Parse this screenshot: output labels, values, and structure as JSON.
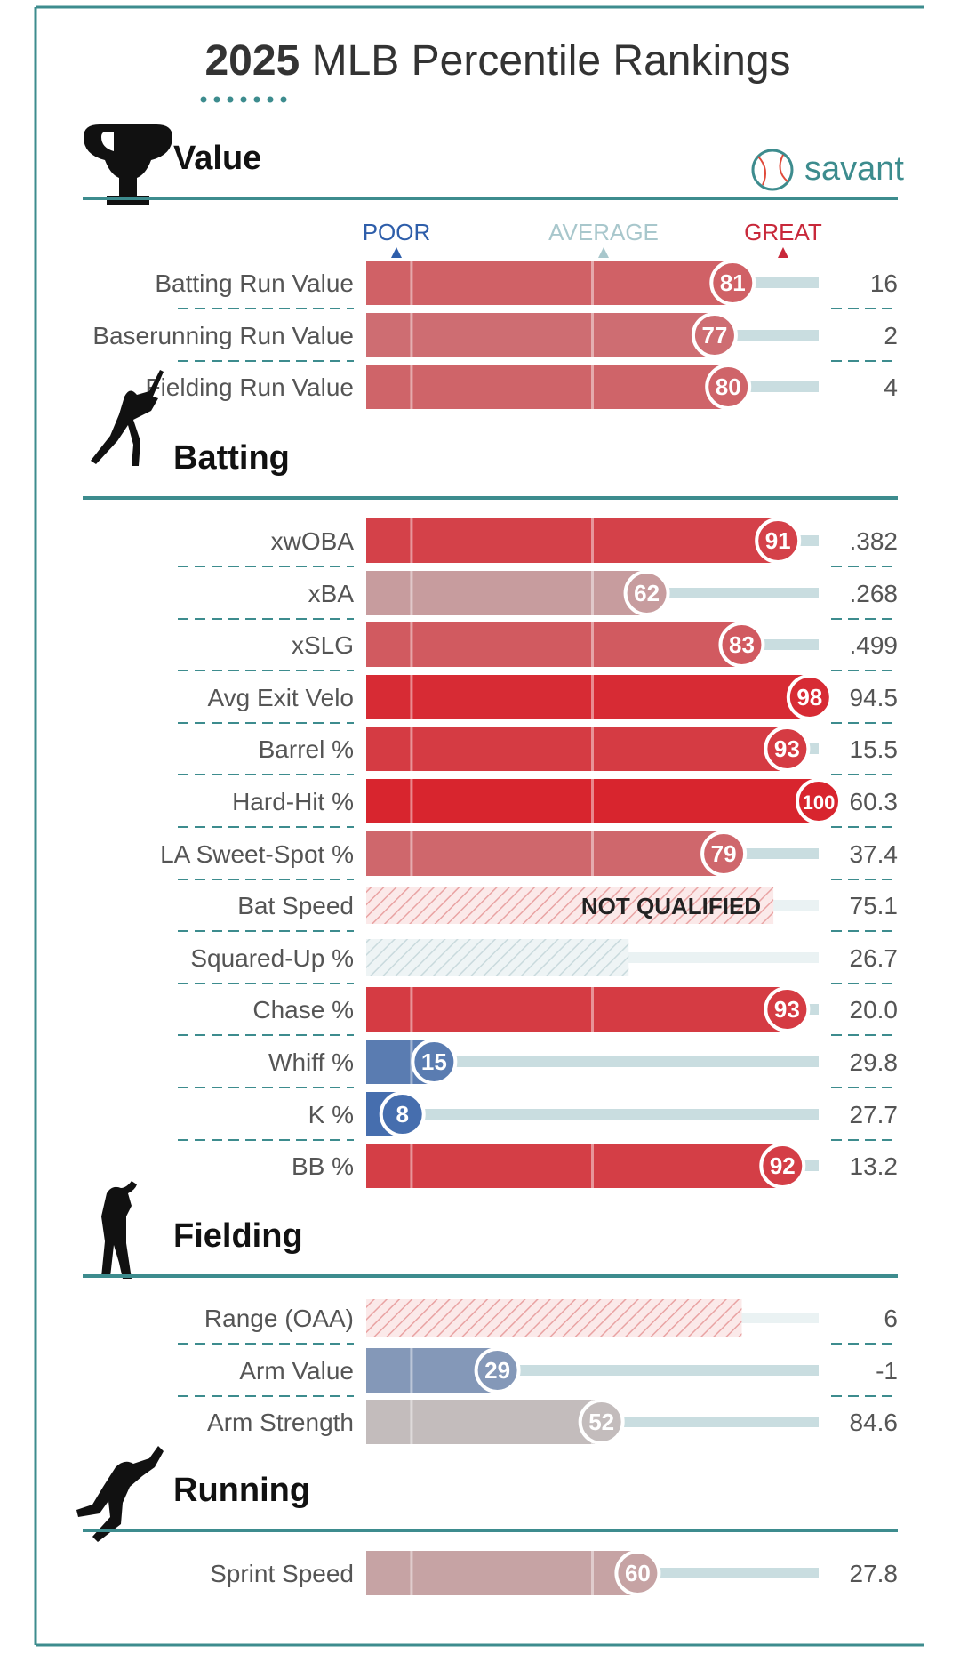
{
  "title": {
    "year": "2025",
    "rest": "MLB Percentile Rankings"
  },
  "brand": {
    "name": "savant",
    "icon": "baseball-icon"
  },
  "scale": {
    "poor": "POOR",
    "average": "AVERAGE",
    "great": "GREAT"
  },
  "colors": {
    "frame": "#3d8c8e",
    "great": "#d8252e",
    "poor": "#2e5eaa",
    "average": "#c2c2c2",
    "not_qualified": "#e8a0a0",
    "track": "#c9dde0",
    "poor_label": "#2e5eaa",
    "average_label": "#a8c7cc",
    "great_label": "#c8283a"
  },
  "chart_data": {
    "type": "bar",
    "xlim": [
      0,
      100
    ],
    "sections": [
      {
        "name": "Value",
        "icon": "trophy-icon",
        "rows": [
          {
            "label": "Batting Run Value",
            "percentile": 81,
            "stat": "16"
          },
          {
            "label": "Baserunning Run Value",
            "percentile": 77,
            "stat": "2"
          },
          {
            "label": "Fielding Run Value",
            "percentile": 80,
            "stat": "4"
          }
        ]
      },
      {
        "name": "Batting",
        "icon": "batter-icon",
        "rows": [
          {
            "label": "xwOBA",
            "percentile": 91,
            "stat": ".382"
          },
          {
            "label": "xBA",
            "percentile": 62,
            "stat": ".268"
          },
          {
            "label": "xSLG",
            "percentile": 83,
            "stat": ".499"
          },
          {
            "label": "Avg Exit Velo",
            "percentile": 98,
            "stat": "94.5"
          },
          {
            "label": "Barrel %",
            "percentile": 93,
            "stat": "15.5"
          },
          {
            "label": "Hard-Hit %",
            "percentile": 100,
            "stat": "60.3"
          },
          {
            "label": "LA Sweet-Spot %",
            "percentile": 79,
            "stat": "37.4"
          },
          {
            "label": "Bat Speed",
            "percentile": null,
            "stat": "75.1",
            "status": "NOT QUALIFIED",
            "unqualified_fill": 0.9,
            "unqualified_tone": "red"
          },
          {
            "label": "Squared-Up %",
            "percentile": null,
            "stat": "26.7",
            "unqualified_fill": 0.58,
            "unqualified_tone": "gray"
          },
          {
            "label": "Chase %",
            "percentile": 93,
            "stat": "20.0"
          },
          {
            "label": "Whiff %",
            "percentile": 15,
            "stat": "29.8"
          },
          {
            "label": "K %",
            "percentile": 8,
            "stat": "27.7"
          },
          {
            "label": "BB %",
            "percentile": 92,
            "stat": "13.2"
          }
        ]
      },
      {
        "name": "Fielding",
        "icon": "fielder-icon",
        "rows": [
          {
            "label": "Range (OAA)",
            "percentile": null,
            "stat": "6",
            "unqualified_fill": 0.83,
            "unqualified_tone": "red"
          },
          {
            "label": "Arm Value",
            "percentile": 29,
            "stat": "-1"
          },
          {
            "label": "Arm Strength",
            "percentile": 52,
            "stat": "84.6"
          }
        ]
      },
      {
        "name": "Running",
        "icon": "runner-icon",
        "rows": [
          {
            "label": "Sprint Speed",
            "percentile": 60,
            "stat": "27.8"
          }
        ]
      }
    ]
  }
}
